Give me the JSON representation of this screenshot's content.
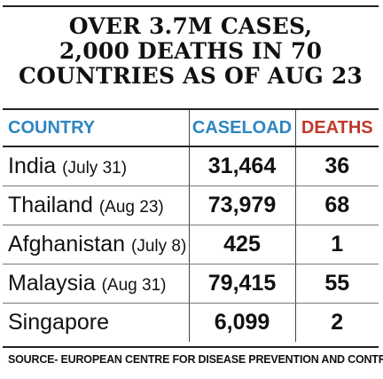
{
  "chart_data": {
    "type": "table",
    "title_lines": [
      "OVER 3.7M CASES,",
      "2,000 DEATHS IN 70",
      "COUNTRIES AS OF AUG 23"
    ],
    "columns": [
      "COUNTRY",
      "CASELOAD",
      "DEATHS"
    ],
    "rows": [
      {
        "country": "India",
        "date": "(July 31)",
        "caseload": "31,464",
        "deaths": "36"
      },
      {
        "country": "Thailand",
        "date": "(Aug 23)",
        "caseload": "73,979",
        "deaths": "68"
      },
      {
        "country": "Afghanistan",
        "date": "(July 8)",
        "caseload": "425",
        "deaths": "1"
      },
      {
        "country": "Malaysia",
        "date": "(Aug 31)",
        "caseload": "79,415",
        "deaths": "55"
      },
      {
        "country": "Singapore",
        "date": "",
        "caseload": "6,099",
        "deaths": "2"
      }
    ],
    "source": "SOURCE- EUROPEAN CENTRE FOR DISEASE PREVENTION AND CONTROL",
    "colors": {
      "header_blue": "#2e86c1",
      "header_red": "#c0392b",
      "text": "#111111"
    }
  }
}
